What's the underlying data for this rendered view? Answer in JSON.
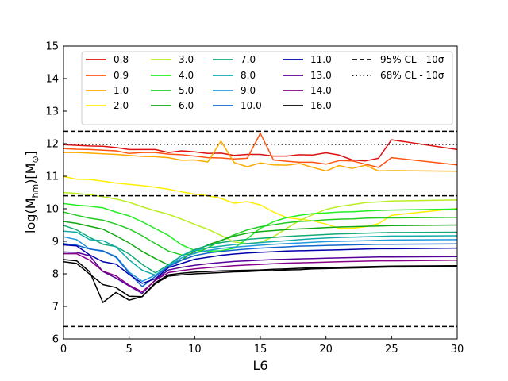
{
  "chart_data": {
    "type": "line",
    "title": "",
    "xlabel": "L6",
    "ylabel": "log(M",
    "ylabel_sub": "hm",
    "ylabel_tail": ")[M",
    "ylabel_sun": "⊙",
    "ylabel_end": "]",
    "xlim": [
      0,
      30
    ],
    "ylim": [
      6,
      15
    ],
    "xticks": [
      "0",
      "5",
      "10",
      "15",
      "20",
      "25",
      "30"
    ],
    "yticks": [
      "6",
      "7",
      "8",
      "9",
      "10",
      "11",
      "12",
      "13",
      "14",
      "15"
    ],
    "grid": false,
    "legend_placement": "top",
    "x": [
      0,
      1,
      2,
      3,
      4,
      5,
      6,
      7,
      8,
      9,
      10,
      11,
      12,
      13,
      14,
      15,
      16,
      17,
      18,
      19,
      20,
      21,
      22,
      23,
      24,
      25,
      30
    ],
    "series": [
      {
        "name": "0.8",
        "color": "#dd1111",
        "values": [
          11.97,
          11.95,
          11.93,
          11.92,
          11.88,
          11.82,
          11.82,
          11.82,
          11.73,
          11.78,
          11.75,
          11.7,
          11.71,
          11.64,
          11.67,
          11.67,
          11.62,
          11.62,
          11.66,
          11.65,
          11.72,
          11.65,
          11.5,
          11.47,
          11.55,
          12.12,
          11.82
        ]
      },
      {
        "name": "0.9",
        "color": "#ff5511",
        "values": [
          11.85,
          11.83,
          11.82,
          11.8,
          11.78,
          11.7,
          11.73,
          11.73,
          11.68,
          11.66,
          11.62,
          11.57,
          11.56,
          11.53,
          11.55,
          12.32,
          11.5,
          11.46,
          11.43,
          11.43,
          11.37,
          11.48,
          11.47,
          11.37,
          11.27,
          11.57,
          11.35
        ]
      },
      {
        "name": "1.0",
        "color": "#ffaa00",
        "values": [
          11.73,
          11.73,
          11.71,
          11.69,
          11.67,
          11.64,
          11.61,
          11.6,
          11.57,
          11.49,
          11.5,
          11.44,
          12.08,
          11.42,
          11.29,
          11.41,
          11.35,
          11.34,
          11.39,
          11.27,
          11.16,
          11.33,
          11.24,
          11.34,
          11.16,
          11.17,
          11.15
        ]
      },
      {
        "name": "2.0",
        "color": "#ffee00",
        "values": [
          10.99,
          10.91,
          10.9,
          10.85,
          10.79,
          10.75,
          10.71,
          10.66,
          10.6,
          10.52,
          10.45,
          10.4,
          10.32,
          10.17,
          10.22,
          10.12,
          9.9,
          9.73,
          9.68,
          9.63,
          9.53,
          9.4,
          9.4,
          9.45,
          9.54,
          9.8,
          10.01
        ]
      },
      {
        "name": "3.0",
        "color": "#bbee22",
        "values": [
          10.5,
          10.47,
          10.43,
          10.37,
          10.3,
          10.2,
          10.06,
          9.94,
          9.83,
          9.68,
          9.52,
          9.37,
          9.18,
          8.98,
          8.93,
          8.97,
          9.14,
          9.4,
          9.64,
          9.82,
          9.98,
          10.07,
          10.13,
          10.19,
          10.21,
          10.24,
          10.27
        ]
      },
      {
        "name": "4.0",
        "color": "#22ee22",
        "values": [
          10.16,
          10.11,
          10.08,
          10.03,
          9.9,
          9.78,
          9.6,
          9.39,
          9.18,
          8.89,
          8.72,
          8.7,
          8.71,
          8.79,
          9.08,
          9.4,
          9.6,
          9.73,
          9.8,
          9.85,
          9.87,
          9.9,
          9.91,
          9.93,
          9.95,
          9.96,
          9.99
        ]
      },
      {
        "name": "5.0",
        "color": "#22cc22",
        "values": [
          9.9,
          9.8,
          9.71,
          9.65,
          9.53,
          9.38,
          9.17,
          8.93,
          8.7,
          8.58,
          8.62,
          8.8,
          9.02,
          9.2,
          9.35,
          9.45,
          9.51,
          9.57,
          9.61,
          9.63,
          9.66,
          9.68,
          9.69,
          9.71,
          9.72,
          9.72,
          9.74
        ]
      },
      {
        "name": "6.0",
        "color": "#11aa11",
        "values": [
          9.61,
          9.55,
          9.46,
          9.37,
          9.17,
          8.95,
          8.69,
          8.47,
          8.27,
          8.42,
          8.7,
          8.89,
          9.03,
          9.16,
          9.25,
          9.3,
          9.33,
          9.36,
          9.38,
          9.4,
          9.42,
          9.44,
          9.45,
          9.46,
          9.47,
          9.48,
          9.5
        ]
      },
      {
        "name": "7.0",
        "color": "#11aa77",
        "values": [
          9.49,
          9.35,
          9.12,
          8.91,
          8.84,
          8.61,
          8.29,
          8.03,
          8.28,
          8.56,
          8.75,
          8.87,
          8.96,
          9.02,
          9.06,
          9.09,
          9.12,
          9.15,
          9.17,
          9.19,
          9.21,
          9.23,
          9.24,
          9.25,
          9.26,
          9.27,
          9.28
        ]
      },
      {
        "name": "8.0",
        "color": "#11aaaa",
        "values": [
          9.31,
          9.28,
          9.05,
          9.02,
          8.83,
          8.43,
          8.11,
          7.96,
          8.25,
          8.56,
          8.72,
          8.8,
          8.85,
          8.9,
          8.93,
          8.96,
          8.99,
          9.02,
          9.05,
          9.08,
          9.1,
          9.12,
          9.13,
          9.14,
          9.15,
          9.16,
          9.17
        ]
      },
      {
        "name": "9.0",
        "color": "#2299dd",
        "values": [
          9.14,
          9.05,
          8.76,
          8.69,
          8.54,
          8.05,
          7.77,
          7.96,
          8.23,
          8.49,
          8.64,
          8.72,
          8.78,
          8.82,
          8.85,
          8.88,
          8.91,
          8.93,
          8.95,
          8.97,
          8.99,
          9.0,
          9.01,
          9.02,
          9.03,
          9.04,
          9.05
        ]
      },
      {
        "name": "10.0",
        "color": "#1166cc",
        "values": [
          8.93,
          8.88,
          8.76,
          8.71,
          8.51,
          8.02,
          7.61,
          7.92,
          8.22,
          8.42,
          8.56,
          8.64,
          8.69,
          8.73,
          8.76,
          8.79,
          8.81,
          8.83,
          8.85,
          8.86,
          8.87,
          8.88,
          8.89,
          8.9,
          8.91,
          8.91,
          8.92
        ]
      },
      {
        "name": "11.0",
        "color": "#0000aa",
        "values": [
          8.89,
          8.86,
          8.58,
          8.37,
          8.3,
          7.98,
          7.71,
          7.85,
          8.19,
          8.32,
          8.45,
          8.51,
          8.57,
          8.61,
          8.64,
          8.66,
          8.68,
          8.7,
          8.71,
          8.72,
          8.73,
          8.74,
          8.75,
          8.76,
          8.77,
          8.77,
          8.79
        ]
      },
      {
        "name": "13.0",
        "color": "#550099",
        "values": [
          8.67,
          8.66,
          8.55,
          8.07,
          7.87,
          7.63,
          7.4,
          7.82,
          8.12,
          8.2,
          8.26,
          8.31,
          8.35,
          8.38,
          8.4,
          8.42,
          8.44,
          8.45,
          8.46,
          8.47,
          8.48,
          8.49,
          8.5,
          8.51,
          8.52,
          8.52,
          8.53
        ]
      },
      {
        "name": "14.0",
        "color": "#880088",
        "values": [
          8.62,
          8.62,
          8.42,
          8.08,
          7.94,
          7.65,
          7.45,
          7.8,
          8.04,
          8.1,
          8.15,
          8.19,
          8.22,
          8.25,
          8.27,
          8.29,
          8.31,
          8.33,
          8.34,
          8.35,
          8.36,
          8.37,
          8.38,
          8.39,
          8.4,
          8.4,
          8.42
        ]
      },
      {
        "name": "16.0",
        "color": "#000000",
        "values": [
          8.44,
          8.4,
          8.06,
          7.12,
          7.43,
          7.19,
          7.3,
          7.73,
          7.97,
          8.02,
          8.05,
          8.07,
          8.09,
          8.1,
          8.11,
          8.12,
          8.14,
          8.15,
          8.17,
          8.18,
          8.19,
          8.2,
          8.21,
          8.22,
          8.23,
          8.24,
          8.25
        ]
      },
      {
        "name": "16.0",
        "color": "#000000",
        "values": [
          8.37,
          8.32,
          7.99,
          7.67,
          7.58,
          7.31,
          7.3,
          7.7,
          7.93,
          7.97,
          8.0,
          8.02,
          8.04,
          8.06,
          8.07,
          8.09,
          8.1,
          8.12,
          8.13,
          8.15,
          8.16,
          8.17,
          8.18,
          8.19,
          8.2,
          8.21,
          8.22
        ]
      }
    ],
    "reference_lines": [
      {
        "name": "95% CL - 10σ",
        "style": "dashed",
        "values": [
          12.38,
          10.4,
          6.38
        ]
      },
      {
        "name": "68% CL - 10σ",
        "style": "dotted",
        "values": [
          11.98
        ]
      }
    ]
  }
}
